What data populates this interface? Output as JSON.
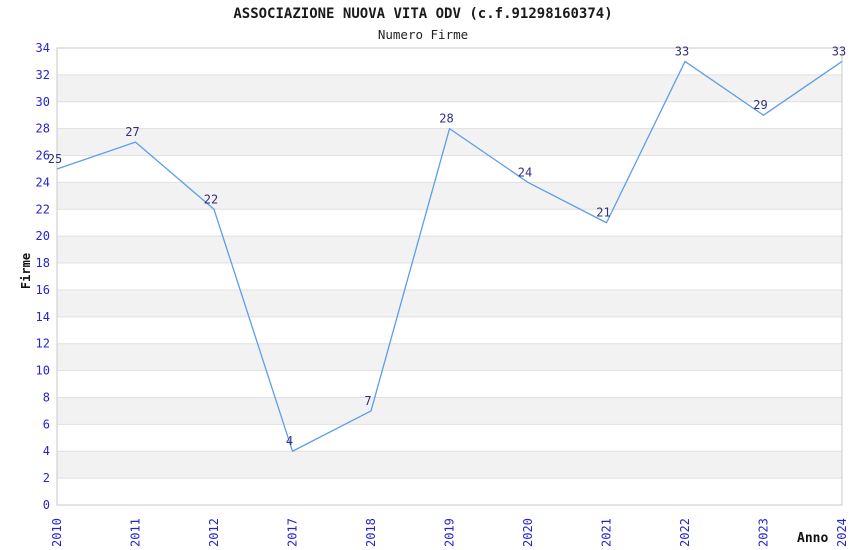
{
  "chart_data": {
    "type": "line",
    "title": "ASSOCIAZIONE NUOVA VITA ODV (c.f.91298160374)",
    "subtitle": "Numero Firme",
    "xlabel": "Anno",
    "ylabel": "Firme",
    "categories": [
      "2010",
      "2011",
      "2012",
      "2017",
      "2018",
      "2019",
      "2020",
      "2021",
      "2022",
      "2023",
      "2024"
    ],
    "values": [
      25,
      27,
      22,
      4,
      7,
      28,
      24,
      21,
      33,
      29,
      33
    ],
    "ylim": [
      0,
      34
    ],
    "ytick_step": 2,
    "legend": "none",
    "grid": "horizontal-bands",
    "colors": {
      "line": "#5C9EE8",
      "tick_labels": "#2424CF",
      "data_labels": "#30307E",
      "band": "#F2F2F2",
      "gridline": "#E0E0E0",
      "plot_border": "#C9C9C9",
      "title_text": "#1a1a1a"
    }
  }
}
